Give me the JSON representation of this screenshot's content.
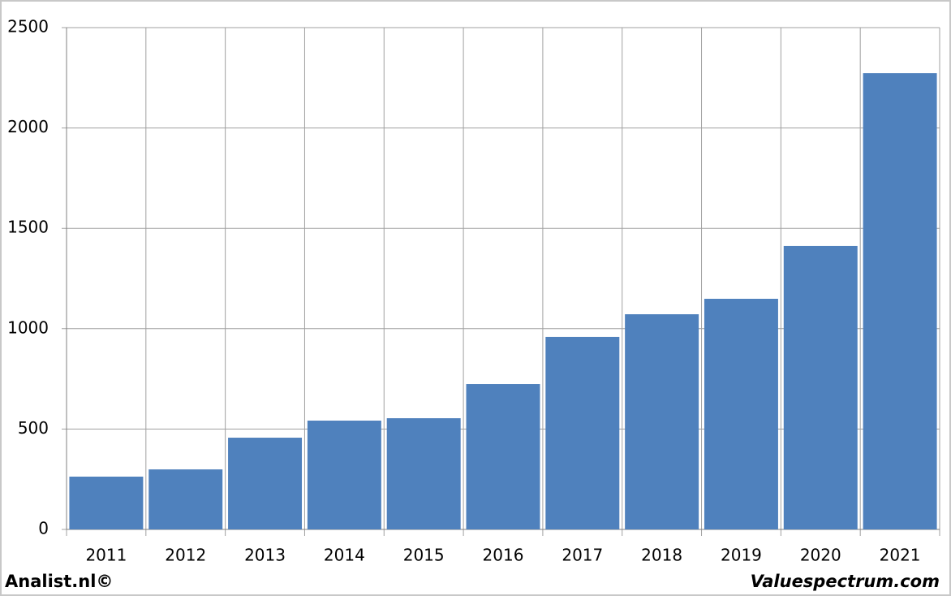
{
  "chart_data": {
    "type": "bar",
    "categories": [
      "2011",
      "2012",
      "2013",
      "2014",
      "2015",
      "2016",
      "2017",
      "2018",
      "2019",
      "2020",
      "2021"
    ],
    "values": [
      263,
      299,
      457,
      542,
      554,
      724,
      959,
      1072,
      1149,
      1412,
      2273
    ],
    "color": "#4f81bd",
    "ylim": [
      0,
      2500
    ],
    "yticks": [
      0,
      500,
      1000,
      1500,
      2000,
      2500
    ],
    "grid": true,
    "source_left": "Analist.nl©",
    "source_right": "Valuespectrum.com"
  }
}
